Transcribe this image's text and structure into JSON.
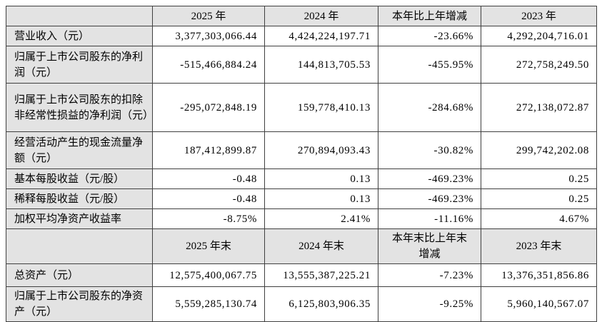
{
  "table": {
    "columns_annual": [
      "",
      "2025 年",
      "2024 年",
      "本年比上年增减",
      "2023 年"
    ],
    "columns_end": [
      "",
      "2025 年末",
      "2024 年末",
      "本年末比上年末增减",
      "2023 年末"
    ],
    "rows_annual": [
      {
        "label": "营业收入（元）",
        "values": [
          "3,377,303,066.44",
          "4,424,224,197.71",
          "-23.66%",
          "4,292,204,716.01"
        ]
      },
      {
        "label": "归属于上市公司股东的净利润（元）",
        "values": [
          "-515,466,884.24",
          "144,813,705.53",
          "-455.95%",
          "272,758,249.50"
        ]
      },
      {
        "label": "归属于上市公司股东的扣除非经常性损益的净利润（元）",
        "values": [
          "-295,072,848.19",
          "159,778,410.13",
          "-284.68%",
          "272,138,072.87"
        ]
      },
      {
        "label": "经营活动产生的现金流量净额（元）",
        "values": [
          "187,412,899.87",
          "270,894,093.43",
          "-30.82%",
          "299,742,202.08"
        ]
      },
      {
        "label": "基本每股收益（元/股）",
        "values": [
          "-0.48",
          "0.13",
          "-469.23%",
          "0.25"
        ]
      },
      {
        "label": "稀释每股收益（元/股）",
        "values": [
          "-0.48",
          "0.13",
          "-469.23%",
          "0.25"
        ]
      },
      {
        "label": "加权平均净资产收益率",
        "values": [
          "-8.75%",
          "2.41%",
          "-11.16%",
          "4.67%"
        ]
      }
    ],
    "rows_end": [
      {
        "label": "总资产（元）",
        "values": [
          "12,575,400,067.75",
          "13,555,387,225.21",
          "-7.23%",
          "13,376,351,856.86"
        ]
      },
      {
        "label": "归属于上市公司股东的净资产（元）",
        "values": [
          "5,559,285,130.74",
          "6,125,803,906.35",
          "-9.25%",
          "5,960,140,567.07"
        ]
      }
    ],
    "colors": {
      "header_bg": "#e3e3e3",
      "border": "#404040",
      "cell_bg": "#ffffff",
      "text": "#000000"
    }
  }
}
